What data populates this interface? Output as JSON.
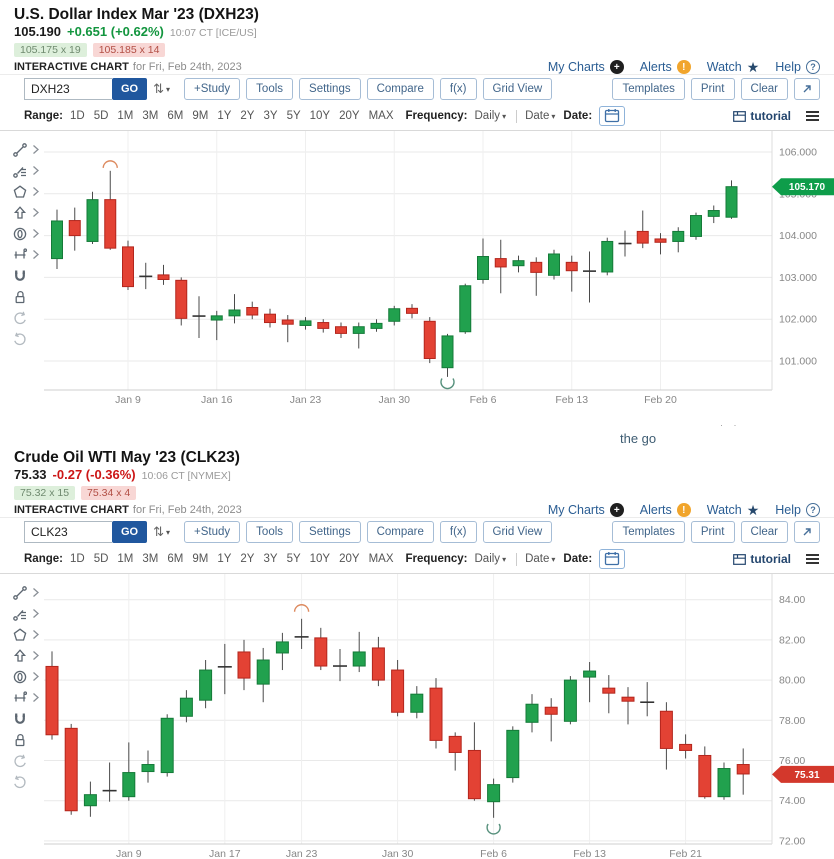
{
  "modules": [
    {
      "header": {
        "title": "U.S. Dollar Index Mar '23 (DXH23)",
        "price": "105.190",
        "change": "+0.651 (+0.62%)",
        "direction": "up",
        "time": "10:07 CT [ICE/US]",
        "bid": "105.175 x 19",
        "ask": "105.185 x 14",
        "chart_label": "INTERACTIVE CHART",
        "chart_date": "for Fri, Feb 24th, 2023"
      },
      "links": {
        "my_charts": "My Charts",
        "alerts": "Alerts",
        "watch": "Watch",
        "help": "Help"
      },
      "toolbar": {
        "symbol": "DXH23",
        "go": "GO",
        "buttons": [
          "+Study",
          "Tools",
          "Settings",
          "Compare",
          "f(x)",
          "Grid View"
        ],
        "right_buttons": [
          "Templates",
          "Print",
          "Clear"
        ]
      },
      "rangebar": {
        "range_label": "Range:",
        "ranges": [
          "1D",
          "5D",
          "1M",
          "3M",
          "6M",
          "9M",
          "1Y",
          "2Y",
          "3Y",
          "5Y",
          "10Y",
          "20Y",
          "MAX"
        ],
        "frequency_label": "Frequency:",
        "frequency": "Daily",
        "date_menu": "Date",
        "date_label": "Date:",
        "tutorial": "tutorial"
      }
    },
    {
      "header": {
        "title": "Crude Oil WTI May '23 (CLK23)",
        "price": "75.33",
        "change": "-0.27 (-0.36%)",
        "direction": "down",
        "time": "10:06 CT [NYMEX]",
        "bid": "75.32 x 15",
        "ask": "75.34 x 4",
        "chart_label": "INTERACTIVE CHART",
        "chart_date": "for Fri, Feb 24th, 2023"
      },
      "links": {
        "my_charts": "My Charts",
        "alerts": "Alerts",
        "watch": "Watch",
        "help": "Help"
      },
      "toolbar": {
        "symbol": "CLK23",
        "go": "GO",
        "buttons": [
          "+Study",
          "Tools",
          "Settings",
          "Compare",
          "f(x)",
          "Grid View"
        ],
        "right_buttons": [
          "Templates",
          "Print",
          "Clear"
        ]
      },
      "rangebar": {
        "range_label": "Range:",
        "ranges": [
          "1D",
          "5D",
          "1M",
          "3M",
          "6M",
          "9M",
          "1Y",
          "2Y",
          "3Y",
          "5Y",
          "10Y",
          "20Y",
          "MAX"
        ],
        "frequency_label": "Frequency:",
        "frequency": "Daily",
        "date_menu": "Date",
        "date_label": "Date:",
        "tutorial": "tutorial"
      }
    }
  ],
  "between": {
    "text": "the go",
    "dots": "· ·"
  },
  "tools": [
    "trend-line-tool",
    "fibonacci-tool",
    "shapes-tool",
    "arrow-annotation-tool",
    "ellipse-annotation-tool",
    "measure-tool",
    "magnet-tool",
    "lock-tool",
    "undo",
    "redo"
  ],
  "colors": {
    "up_fill": "#21a14e",
    "up_stroke": "#147a38",
    "down_fill": "#e34234",
    "down_stroke": "#b3261d",
    "wick": "#4a4a4a",
    "grid": "#e9e9e9",
    "axis_text": "#878787",
    "tag_up": "#0e9d4a",
    "tag_down": "#d3382c"
  },
  "chart_data": [
    {
      "type": "candlestick",
      "symbol": "DXH23",
      "frequency": "Daily",
      "ylim": [
        100.3,
        106.4
      ],
      "y_ticks": [
        {
          "v": 106,
          "label": "106.000"
        },
        {
          "v": 105,
          "label": "105.000"
        },
        {
          "v": 104,
          "label": "104.000"
        },
        {
          "v": 103,
          "label": "103.000"
        },
        {
          "v": 102,
          "label": "102.000"
        },
        {
          "v": 101,
          "label": "101.000"
        }
      ],
      "x_ticks": [
        {
          "i": 4,
          "label": "Jan 9"
        },
        {
          "i": 9,
          "label": "Jan 16"
        },
        {
          "i": 14,
          "label": "Jan 23"
        },
        {
          "i": 19,
          "label": "Jan 30"
        },
        {
          "i": 24,
          "label": "Feb 6"
        },
        {
          "i": 29,
          "label": "Feb 13"
        },
        {
          "i": 34,
          "label": "Feb 20"
        }
      ],
      "last_price": {
        "value": 105.17,
        "label": "105.170",
        "direction": "up"
      },
      "candles": [
        [
          103.45,
          104.62,
          103.2,
          104.35
        ],
        [
          104.36,
          104.67,
          103.64,
          104.0
        ],
        [
          103.86,
          105.05,
          103.8,
          104.86
        ],
        [
          104.86,
          105.55,
          103.66,
          103.7
        ],
        [
          103.73,
          103.88,
          102.7,
          102.78
        ],
        [
          103.05,
          103.35,
          102.72,
          103.0
        ],
        [
          103.06,
          103.3,
          102.82,
          102.95
        ],
        [
          102.93,
          103.0,
          101.85,
          102.02
        ],
        [
          102.05,
          102.55,
          101.55,
          102.1
        ],
        [
          101.98,
          102.2,
          101.5,
          102.08
        ],
        [
          102.08,
          102.6,
          101.9,
          102.22
        ],
        [
          102.28,
          102.42,
          102.0,
          102.1
        ],
        [
          102.12,
          102.25,
          101.8,
          101.92
        ],
        [
          101.98,
          102.1,
          101.45,
          101.88
        ],
        [
          101.85,
          102.05,
          101.75,
          101.96
        ],
        [
          101.92,
          102.0,
          101.68,
          101.78
        ],
        [
          101.82,
          101.92,
          101.55,
          101.66
        ],
        [
          101.66,
          101.92,
          101.3,
          101.82
        ],
        [
          101.78,
          102.0,
          101.7,
          101.9
        ],
        [
          101.95,
          102.32,
          101.85,
          102.25
        ],
        [
          102.26,
          102.36,
          102.02,
          102.14
        ],
        [
          101.95,
          102.05,
          100.95,
          101.06
        ],
        [
          100.84,
          101.65,
          100.62,
          101.6
        ],
        [
          101.7,
          102.85,
          101.65,
          102.8
        ],
        [
          102.95,
          103.93,
          102.85,
          103.5
        ],
        [
          103.45,
          103.9,
          102.62,
          103.25
        ],
        [
          103.28,
          103.52,
          103.12,
          103.4
        ],
        [
          103.36,
          103.48,
          102.56,
          103.12
        ],
        [
          103.05,
          103.66,
          102.95,
          103.56
        ],
        [
          103.36,
          103.52,
          102.66,
          103.16
        ],
        [
          103.16,
          103.62,
          102.4,
          103.14
        ],
        [
          103.13,
          103.95,
          103.05,
          103.86
        ],
        [
          103.82,
          104.12,
          103.5,
          103.8
        ],
        [
          104.1,
          104.6,
          103.7,
          103.82
        ],
        [
          103.92,
          104.06,
          103.55,
          103.84
        ],
        [
          103.86,
          104.2,
          103.6,
          104.1
        ],
        [
          103.98,
          104.55,
          103.9,
          104.48
        ],
        [
          104.46,
          104.72,
          104.3,
          104.6
        ],
        [
          104.44,
          105.32,
          104.4,
          105.17
        ]
      ],
      "annotations": [
        {
          "type": "arc-over",
          "i": 3,
          "v": 105.62,
          "color": "#dd8a5f"
        },
        {
          "type": "circle-under",
          "i": 22,
          "v": 100.58,
          "color": "#56907c"
        }
      ]
    },
    {
      "type": "candlestick",
      "symbol": "CLK23",
      "frequency": "Daily",
      "ylim": [
        71.8,
        85.1
      ],
      "y_ticks": [
        {
          "v": 84,
          "label": "84.00"
        },
        {
          "v": 82,
          "label": "82.00"
        },
        {
          "v": 80,
          "label": "80.00"
        },
        {
          "v": 78,
          "label": "78.00"
        },
        {
          "v": 76,
          "label": "76.00"
        },
        {
          "v": 74,
          "label": "74.00"
        },
        {
          "v": 72,
          "label": "72.00"
        }
      ],
      "x_ticks": [
        {
          "i": 4,
          "label": "Jan 9"
        },
        {
          "i": 9,
          "label": "Jan 17"
        },
        {
          "i": 13,
          "label": "Jan 23"
        },
        {
          "i": 18,
          "label": "Jan 30"
        },
        {
          "i": 23,
          "label": "Feb 6"
        },
        {
          "i": 28,
          "label": "Feb 13"
        },
        {
          "i": 33,
          "label": "Feb 21"
        }
      ],
      "last_price": {
        "value": 75.31,
        "label": "75.31",
        "direction": "down"
      },
      "candles": [
        [
          80.68,
          81.43,
          77.04,
          77.28
        ],
        [
          77.6,
          77.82,
          73.3,
          73.5
        ],
        [
          73.75,
          74.95,
          73.2,
          74.3
        ],
        [
          74.55,
          75.9,
          73.95,
          74.45
        ],
        [
          74.2,
          76.9,
          74.0,
          75.4
        ],
        [
          75.45,
          76.5,
          74.9,
          75.8
        ],
        [
          75.4,
          78.3,
          75.2,
          78.1
        ],
        [
          78.2,
          79.5,
          77.9,
          79.1
        ],
        [
          79.0,
          81.0,
          78.6,
          80.5
        ],
        [
          80.7,
          81.8,
          79.3,
          80.62
        ],
        [
          81.4,
          82.0,
          79.5,
          80.1
        ],
        [
          79.8,
          81.6,
          78.9,
          81.0
        ],
        [
          81.35,
          82.35,
          80.5,
          81.9
        ],
        [
          82.2,
          83.05,
          81.55,
          82.1
        ],
        [
          82.1,
          82.6,
          80.5,
          80.7
        ],
        [
          80.75,
          81.55,
          79.95,
          80.65
        ],
        [
          80.7,
          82.4,
          80.4,
          81.4
        ],
        [
          81.6,
          82.15,
          79.7,
          80.0
        ],
        [
          80.5,
          81.0,
          78.2,
          78.4
        ],
        [
          78.4,
          79.7,
          78.1,
          79.3
        ],
        [
          79.6,
          80.1,
          76.6,
          77.0
        ],
        [
          77.2,
          77.4,
          75.5,
          76.4
        ],
        [
          76.5,
          77.9,
          74.0,
          74.1
        ],
        [
          73.95,
          75.1,
          73.15,
          74.8
        ],
        [
          75.15,
          77.7,
          74.9,
          77.5
        ],
        [
          77.9,
          79.3,
          77.4,
          78.8
        ],
        [
          78.65,
          79.1,
          76.95,
          78.3
        ],
        [
          77.95,
          80.2,
          77.8,
          80.0
        ],
        [
          80.15,
          80.9,
          78.9,
          80.45
        ],
        [
          79.6,
          80.25,
          78.35,
          79.35
        ],
        [
          79.15,
          79.65,
          77.8,
          78.95
        ],
        [
          78.95,
          79.9,
          78.2,
          78.85
        ],
        [
          78.45,
          78.9,
          75.55,
          76.6
        ],
        [
          76.8,
          77.3,
          76.1,
          76.5
        ],
        [
          76.25,
          76.7,
          74.1,
          74.2
        ],
        [
          74.2,
          75.9,
          74.05,
          75.6
        ],
        [
          75.8,
          76.6,
          74.3,
          75.33
        ]
      ],
      "annotations": [
        {
          "type": "arc-over",
          "i": 13,
          "v": 83.4,
          "color": "#dd8a5f"
        },
        {
          "type": "circle-under",
          "i": 23,
          "v": 72.84,
          "color": "#56907c"
        }
      ]
    }
  ]
}
